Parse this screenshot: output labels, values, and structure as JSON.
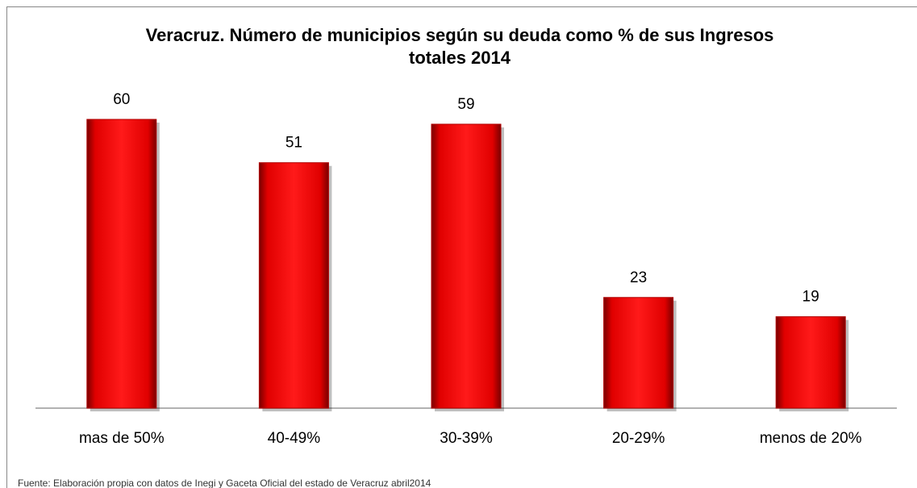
{
  "chart_data": {
    "type": "bar",
    "title": "Veracruz. Número de municipios según su deuda como % de sus Ingresos totales 2014",
    "categories": [
      "mas de 50%",
      "40-49%",
      "30-39%",
      "20-29%",
      "menos de 20%"
    ],
    "values": [
      60,
      51,
      59,
      23,
      19
    ],
    "color": "#ff0000",
    "ylim": [
      0,
      60
    ],
    "source": "Fuente: Elaboración propia con datos de Inegi y Gaceta Oficial del estado de Veracruz abril2014"
  }
}
